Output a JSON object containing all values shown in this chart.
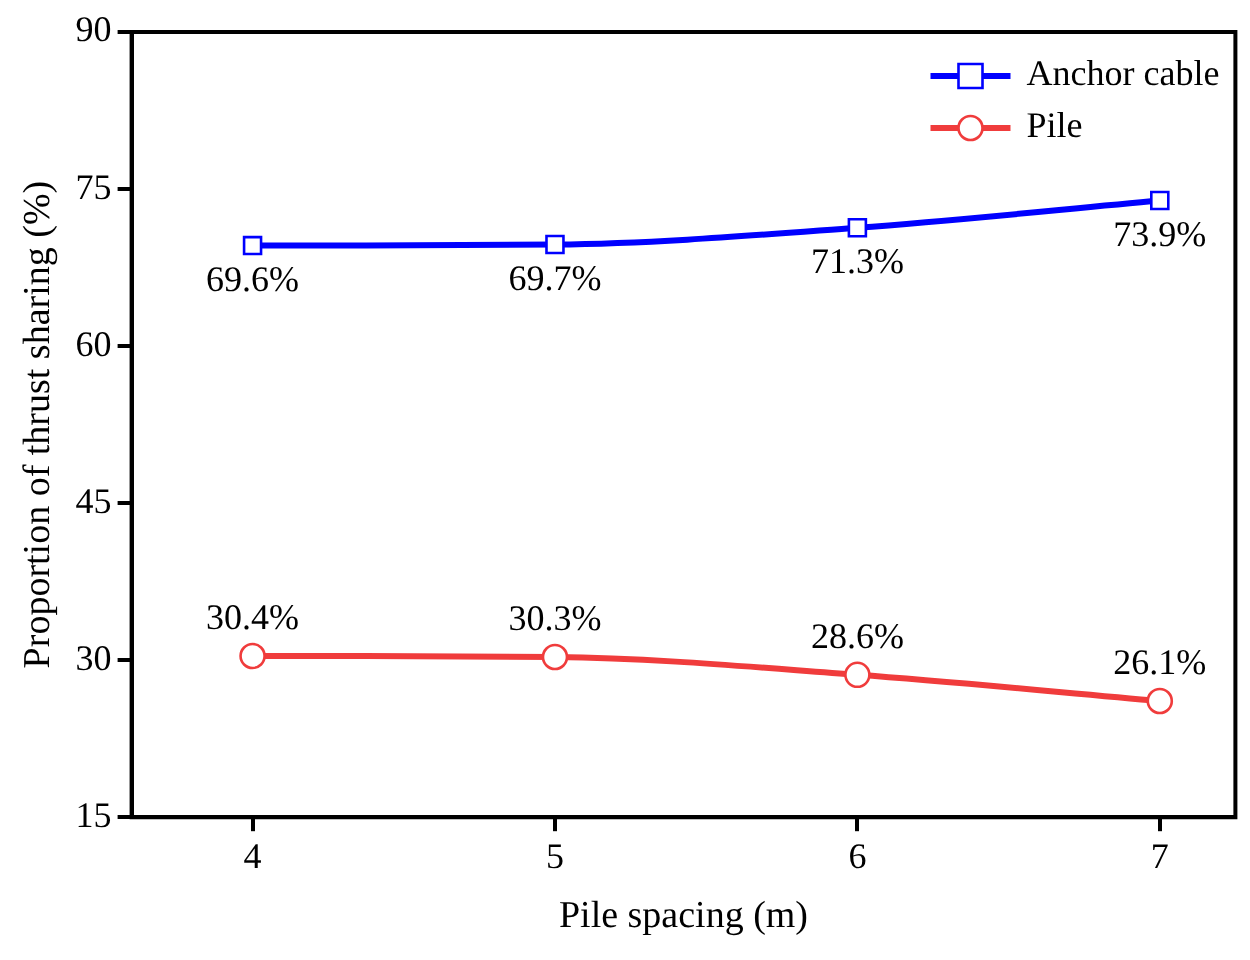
{
  "chart_data": {
    "type": "line",
    "xlabel": "Pile spacing (m)",
    "ylabel": "Proportion of thrust sharing (%)",
    "x": [
      4,
      5,
      6,
      7
    ],
    "xlim": [
      3.6,
      7.25
    ],
    "xticks": [
      4,
      5,
      6,
      7
    ],
    "ylim": [
      15,
      90
    ],
    "yticks": [
      15,
      30,
      45,
      60,
      75,
      90
    ],
    "series": [
      {
        "name": "Anchor cable",
        "color": "#0000ff",
        "marker": "square",
        "values": [
          69.6,
          69.7,
          71.3,
          73.9
        ],
        "value_labels": [
          "69.6%",
          "69.7%",
          "71.3%",
          "73.9%"
        ]
      },
      {
        "name": "Pile",
        "color": "#f03c3c",
        "marker": "circle",
        "values": [
          30.4,
          30.3,
          28.6,
          26.1
        ],
        "value_labels": [
          "30.4%",
          "30.3%",
          "28.6%",
          "26.1%"
        ]
      }
    ],
    "grid": false,
    "legend": "top right",
    "line_style": "solid"
  }
}
